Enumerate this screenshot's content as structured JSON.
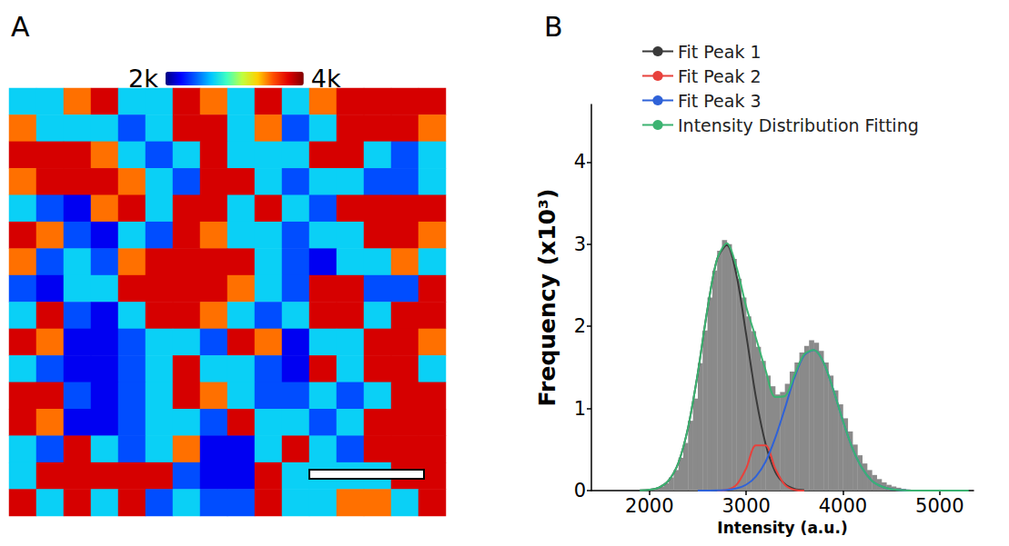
{
  "chart_data": [
    {
      "type": "heatmap",
      "panel_label": "A",
      "cells": [
        [
          2700,
          2700,
          3500,
          3800,
          2700,
          2700,
          3800,
          3500,
          2700,
          3800,
          2700,
          3500,
          3800,
          3800,
          3800,
          3800
        ],
        [
          3500,
          2700,
          2700,
          2700,
          2400,
          2700,
          3800,
          3800,
          2700,
          3500,
          2400,
          2700,
          3800,
          3800,
          3800,
          3500
        ],
        [
          3800,
          3800,
          3800,
          3500,
          2700,
          2400,
          2700,
          3800,
          2700,
          2700,
          2700,
          3800,
          3800,
          2700,
          2400,
          2700
        ],
        [
          3500,
          3800,
          3800,
          3800,
          3500,
          2700,
          2400,
          3800,
          3800,
          2700,
          2400,
          2700,
          2700,
          2400,
          2400,
          2700
        ],
        [
          2700,
          2400,
          2200,
          3500,
          3800,
          2700,
          3800,
          3800,
          2700,
          3800,
          2700,
          2400,
          3800,
          3800,
          3800,
          3800
        ],
        [
          3800,
          3500,
          2400,
          2200,
          2700,
          2400,
          3800,
          3500,
          2700,
          2700,
          2400,
          2700,
          2700,
          3800,
          3800,
          3500
        ],
        [
          3500,
          2400,
          2700,
          2400,
          3500,
          3800,
          3800,
          3800,
          3800,
          2700,
          2400,
          2200,
          2700,
          2700,
          3500,
          2700
        ],
        [
          2400,
          2200,
          2700,
          2700,
          3800,
          3800,
          3800,
          3800,
          3500,
          2700,
          2400,
          3800,
          3800,
          2400,
          2400,
          3800
        ],
        [
          2700,
          3800,
          2400,
          2200,
          2700,
          3800,
          3800,
          3500,
          2700,
          2400,
          2700,
          3800,
          3800,
          2700,
          3800,
          3800
        ],
        [
          3800,
          3500,
          2200,
          2200,
          2400,
          2700,
          2700,
          2400,
          3800,
          3500,
          2200,
          2700,
          2700,
          3800,
          3800,
          3500
        ],
        [
          2700,
          2400,
          2200,
          2200,
          2400,
          2700,
          3800,
          2700,
          2700,
          2400,
          2200,
          3800,
          2700,
          3800,
          3800,
          2700
        ],
        [
          3800,
          3800,
          2400,
          2200,
          2400,
          2700,
          3800,
          3500,
          2700,
          2400,
          2400,
          2700,
          2400,
          2700,
          3800,
          3800
        ],
        [
          3800,
          3500,
          2200,
          2200,
          2400,
          2700,
          2700,
          2400,
          3800,
          2700,
          2700,
          2400,
          2700,
          3800,
          3800,
          3800
        ],
        [
          2700,
          2400,
          3800,
          2700,
          2400,
          2700,
          3500,
          2200,
          2200,
          2700,
          3800,
          2700,
          2400,
          3800,
          3800,
          3800
        ],
        [
          2700,
          3800,
          3800,
          3800,
          3800,
          3800,
          2400,
          2200,
          2200,
          3800,
          2700,
          2700,
          2700,
          2700,
          3800,
          3800
        ],
        [
          3800,
          2700,
          3800,
          2700,
          3800,
          2400,
          2700,
          2400,
          2400,
          3800,
          2700,
          2700,
          3500,
          3500,
          2700,
          3800
        ]
      ],
      "colorbar": {
        "range": [
          2000,
          4000
        ],
        "ticks": [
          {
            "value": 2000,
            "label": "2k"
          },
          {
            "value": 4000,
            "label": "4k"
          }
        ]
      },
      "tick_labels": false
    },
    {
      "type": "histogram",
      "panel_label": "B",
      "x_label": "Intensity (a.u.)",
      "y_label": "Frequency (x10³)",
      "xlim": [
        1400,
        5350
      ],
      "ylim": [
        0,
        4.7
      ],
      "xticks": [
        2000,
        3000,
        4000,
        5000
      ],
      "yticks": [
        0,
        1,
        2,
        3,
        4
      ],
      "grid": false,
      "legend": "top-left",
      "color": "#8a8a8a",
      "bins": [
        1900,
        1950,
        2000,
        2050,
        2100,
        2150,
        2200,
        2250,
        2300,
        2350,
        2400,
        2450,
        2500,
        2550,
        2600,
        2650,
        2700,
        2750,
        2800,
        2850,
        2900,
        2950,
        3000,
        3050,
        3100,
        3150,
        3200,
        3250,
        3300,
        3350,
        3400,
        3450,
        3500,
        3550,
        3600,
        3650,
        3700,
        3750,
        3800,
        3850,
        3900,
        3950,
        4000,
        4050,
        4100,
        4150,
        4200,
        4250,
        4300,
        4350,
        4400,
        4450,
        4500,
        4550,
        4600,
        4650,
        4700,
        4750,
        4800,
        4850,
        4900,
        4950,
        5000,
        5050,
        5100,
        5150,
        5200,
        5250,
        5300
      ],
      "counts": [
        0.003,
        0.006,
        0.015,
        0.03,
        0.05,
        0.09,
        0.16,
        0.25,
        0.4,
        0.58,
        0.85,
        1.12,
        1.55,
        1.95,
        2.35,
        2.68,
        2.92,
        3.05,
        3.0,
        2.82,
        2.58,
        2.35,
        2.12,
        1.94,
        1.75,
        1.58,
        1.4,
        1.27,
        1.17,
        1.2,
        1.3,
        1.45,
        1.56,
        1.68,
        1.76,
        1.83,
        1.8,
        1.7,
        1.56,
        1.4,
        1.22,
        1.05,
        0.88,
        0.72,
        0.56,
        0.43,
        0.33,
        0.25,
        0.19,
        0.14,
        0.1,
        0.07,
        0.05,
        0.035,
        0.022,
        0.014,
        0.008,
        0.005,
        0.003,
        0.002,
        0.001,
        0.001,
        0,
        0,
        0,
        0,
        0,
        0
      ],
      "series": [
        {
          "name": "Fit Peak 1",
          "type": "line",
          "color": "#3a3a3a",
          "x": [
            1900,
            2000,
            2100,
            2200,
            2300,
            2400,
            2500,
            2600,
            2700,
            2800,
            2900,
            3000,
            3100,
            3200,
            3300,
            3400,
            3500,
            3600
          ],
          "values": [
            0.002,
            0.01,
            0.038,
            0.125,
            0.34,
            0.77,
            1.43,
            2.21,
            2.82,
            2.99,
            2.62,
            1.9,
            1.14,
            0.57,
            0.23,
            0.08,
            0.02,
            0.005
          ]
        },
        {
          "name": "Fit Peak 2",
          "type": "line",
          "color": "#e8413c",
          "x": [
            2700,
            2800,
            2900,
            3000,
            3100,
            3200,
            3300,
            3400,
            3500,
            3600
          ],
          "values": [
            0,
            0.009,
            0.07,
            0.27,
            0.55,
            0.55,
            0.27,
            0.07,
            0.009,
            0
          ]
        },
        {
          "name": "Fit Peak 3",
          "type": "line",
          "color": "#2f62d8",
          "x": [
            2500,
            2600,
            2700,
            2800,
            2900,
            3000,
            3100,
            3200,
            3300,
            3400,
            3500,
            3600,
            3700,
            3800,
            3900,
            4000,
            4100,
            4200,
            4300,
            4400,
            4500,
            4600,
            4700,
            4800
          ],
          "values": [
            0.0001,
            0.0006,
            0.002,
            0.008,
            0.027,
            0.072,
            0.17,
            0.35,
            0.64,
            1.0,
            1.38,
            1.65,
            1.71,
            1.56,
            1.23,
            0.85,
            0.51,
            0.27,
            0.12,
            0.05,
            0.017,
            0.005,
            0.001,
            0.0002
          ]
        },
        {
          "name": "Intensity Distribution Fitting",
          "type": "line",
          "color": "#3cb371",
          "x": [
            1900,
            2000,
            2100,
            2200,
            2300,
            2400,
            2500,
            2600,
            2700,
            2800,
            2900,
            3000,
            3100,
            3200,
            3300,
            3400,
            3500,
            3600,
            3700,
            3800,
            3900,
            4000,
            4100,
            4200,
            4300,
            4400,
            4500,
            4600,
            4700,
            4800,
            4900,
            5000,
            5100,
            5200,
            5300
          ],
          "values": [
            0.002,
            0.01,
            0.038,
            0.125,
            0.34,
            0.77,
            1.43,
            2.21,
            2.82,
            3.01,
            2.72,
            2.24,
            1.86,
            1.47,
            1.14,
            1.15,
            1.41,
            1.66,
            1.71,
            1.56,
            1.23,
            0.85,
            0.51,
            0.27,
            0.12,
            0.05,
            0.017,
            0.005,
            0.001,
            0,
            0,
            0,
            0,
            0,
            0
          ]
        }
      ]
    }
  ]
}
